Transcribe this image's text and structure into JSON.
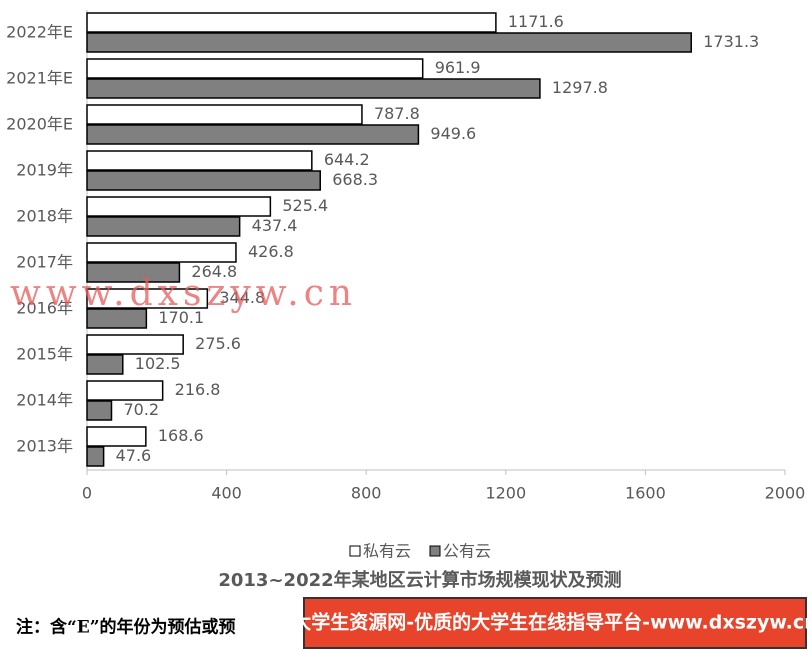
{
  "chart_data": {
    "type": "bar",
    "orientation": "horizontal",
    "title": "2013~2022年某地区云计算市场规模现状及预测",
    "categories": [
      "2022年E",
      "2021年E",
      "2020年E",
      "2019年",
      "2018年",
      "2017年",
      "2016年",
      "2015年",
      "2014年",
      "2013年"
    ],
    "series": [
      {
        "name": "私有云",
        "color": "#ffffff",
        "values": [
          1171.6,
          961.9,
          787.8,
          644.2,
          525.4,
          426.8,
          344.8,
          275.6,
          216.8,
          168.6
        ]
      },
      {
        "name": "公有云",
        "color": "#808080",
        "values": [
          1731.3,
          1297.8,
          949.6,
          668.3,
          437.4,
          264.8,
          170.1,
          102.5,
          70.2,
          47.6
        ]
      }
    ],
    "xlim": [
      0,
      2000
    ],
    "xticks": [
      0,
      400,
      800,
      1200,
      1600,
      2000
    ],
    "grid": false,
    "legend": "bottom",
    "note": "注：含“E”的年份为预估或预",
    "watermark": "www.dxszyw.cn",
    "banner": "大学生资源网-优质的大学生在线指导平台-www.dxszyw.cn"
  }
}
